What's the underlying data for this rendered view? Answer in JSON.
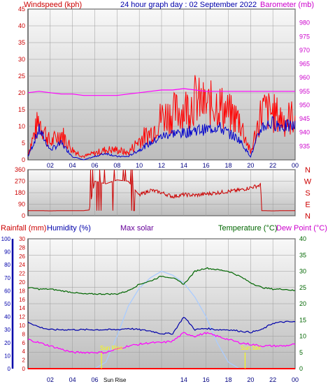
{
  "header": {
    "left_label": "Windspeed (kph)",
    "center_label": "24 hour graph day : 02 September 2022",
    "right_label": "Barometer (mb)"
  },
  "x_ticks": [
    "02",
    "04",
    "06",
    "08",
    "10",
    "12",
    "14",
    "16",
    "18",
    "20",
    "22",
    "00"
  ],
  "compass": [
    "N",
    "W",
    "S",
    "E",
    "N"
  ],
  "bottom_header": {
    "rainfall": "Rainfall (mm)",
    "humidity": "Humidity (%)",
    "solar": "Max solar",
    "temperature": "Temperature (°C)",
    "dewpoint": "Dew Point (°C)"
  },
  "sun_labels": {
    "sunrise_axis": "Sun Rise",
    "sunrise": "Sun Rise",
    "sunset": "Sun Set"
  },
  "colors": {
    "windspeed": "#ff0000",
    "wind_avg": "#0000cc",
    "barometer": "#ff00ff",
    "direction": "#cc0000",
    "humidity": "#0000aa",
    "temperature": "#006600",
    "dewpoint": "#ff00ff",
    "solar": "#aaccff",
    "rainfall": "#ff0000"
  },
  "chart_data": [
    {
      "type": "line",
      "title": "24 hour graph day : 02 September 2022",
      "xlabel": "",
      "ylabel": "Windspeed (kph)",
      "y2label": "Barometer (mb)",
      "x_hours": [
        0,
        1,
        2,
        3,
        4,
        5,
        6,
        7,
        8,
        9,
        10,
        11,
        12,
        13,
        14,
        15,
        16,
        17,
        18,
        19,
        20,
        21,
        22,
        23,
        24
      ],
      "ylim": [
        0,
        45
      ],
      "y2lim": [
        930,
        985
      ],
      "y_ticks": [
        0,
        5,
        10,
        15,
        20,
        25,
        30,
        35,
        40,
        45
      ],
      "y2_ticks": [
        935,
        940,
        945,
        950,
        955,
        960,
        965,
        970,
        975,
        980
      ],
      "series": [
        {
          "name": "Windspeed (kph)",
          "axis": "left",
          "values": [
            2,
            12,
            5,
            8,
            3,
            1,
            2,
            3,
            3,
            2,
            6,
            8,
            13,
            14,
            15,
            18,
            16,
            17,
            14,
            12,
            2,
            15,
            14,
            12,
            13
          ]
        },
        {
          "name": "",
          "axis": "left",
          "values": [
            1,
            9,
            3,
            5,
            1,
            0,
            1,
            2,
            1,
            1,
            3,
            5,
            7,
            8,
            8,
            9,
            9,
            10,
            8,
            6,
            1,
            10,
            11,
            10,
            10
          ]
        },
        {
          "name": "Barometer (mb)",
          "axis": "right",
          "values": [
            954.5,
            955,
            954.5,
            954,
            954,
            953.5,
            953.5,
            953.5,
            953.5,
            954,
            954.5,
            955,
            955.5,
            955.5,
            956,
            955.5,
            955,
            955,
            955,
            955,
            955,
            955,
            955,
            955,
            955
          ]
        }
      ]
    },
    {
      "type": "line",
      "title": "",
      "ylabel": "",
      "x_hours": [
        0,
        1,
        2,
        3,
        4,
        5,
        5.5,
        6,
        7,
        8,
        9,
        10,
        11,
        12,
        13,
        14,
        15,
        16,
        17,
        18,
        19,
        20,
        20.9,
        21,
        22,
        23,
        24
      ],
      "ylim": [
        0,
        360
      ],
      "y_ticks": [
        0,
        90,
        180,
        270,
        360
      ],
      "series": [
        {
          "name": "",
          "values": [
            40,
            40,
            38,
            40,
            40,
            40,
            45,
            270,
            250,
            280,
            270,
            160,
            200,
            180,
            150,
            165,
            160,
            170,
            180,
            190,
            200,
            220,
            240,
            40,
            38,
            40,
            40
          ]
        }
      ]
    },
    {
      "type": "line",
      "title": "",
      "ylabel": "Rainfall (mm)",
      "y2label": "Humidity (%)",
      "y3label": "Temperature (°C)",
      "x_hours": [
        0,
        1,
        2,
        3,
        4,
        5,
        6,
        7,
        8,
        9,
        10,
        11,
        12,
        13,
        14,
        15,
        16,
        17,
        18,
        19,
        20,
        21,
        22,
        23,
        24
      ],
      "ylim": [
        0,
        30
      ],
      "y2lim": [
        0,
        100
      ],
      "y3lim": [
        0,
        40
      ],
      "rainfall_ticks": [
        0,
        2,
        4,
        6,
        8,
        10,
        12,
        14,
        16,
        18,
        20,
        22,
        24,
        26,
        28,
        30
      ],
      "humidity_ticks": [
        0,
        10,
        20,
        30,
        40,
        50,
        60,
        70,
        80,
        90,
        100
      ],
      "temp_ticks": [
        0,
        5,
        10,
        15,
        20,
        25,
        30,
        35,
        40
      ],
      "series": [
        {
          "name": "Temperature (°C)",
          "axis": "temp",
          "values": [
            25,
            24.5,
            24.5,
            24,
            23.5,
            23,
            23,
            23,
            23,
            24,
            26,
            27,
            28.5,
            28,
            26,
            30,
            31,
            30.5,
            30,
            28.5,
            26.5,
            25,
            24.5,
            24.5,
            24
          ]
        },
        {
          "name": "Dew Point (°C)",
          "axis": "temp",
          "values": [
            9,
            8,
            7,
            6,
            5,
            5,
            5,
            5,
            6,
            7,
            7.5,
            8,
            8,
            8.5,
            11,
            10,
            11,
            10,
            9,
            8,
            7.5,
            7,
            7,
            7,
            7.5
          ]
        },
        {
          "name": "Humidity (%)",
          "axis": "hum",
          "values": [
            36,
            32,
            30,
            30,
            30,
            30,
            30,
            30,
            30,
            31,
            30,
            29,
            27,
            27,
            40,
            30,
            31,
            30,
            30,
            29,
            28,
            30,
            35,
            36,
            36
          ]
        },
        {
          "name": "Max solar",
          "axis": "solar",
          "values": [
            0,
            0,
            0,
            0,
            0,
            0,
            0,
            5,
            25,
            48,
            62,
            70,
            75,
            72,
            66,
            55,
            40,
            20,
            5,
            0,
            0,
            0,
            0,
            0,
            0
          ]
        },
        {
          "name": "Rainfall (mm)",
          "axis": "rain",
          "values": [
            0,
            0,
            0,
            0,
            0,
            0,
            0,
            0,
            0,
            0,
            0,
            0,
            0,
            0,
            0,
            0,
            0,
            0,
            0,
            0,
            0,
            0,
            0,
            0,
            0
          ]
        }
      ]
    }
  ]
}
